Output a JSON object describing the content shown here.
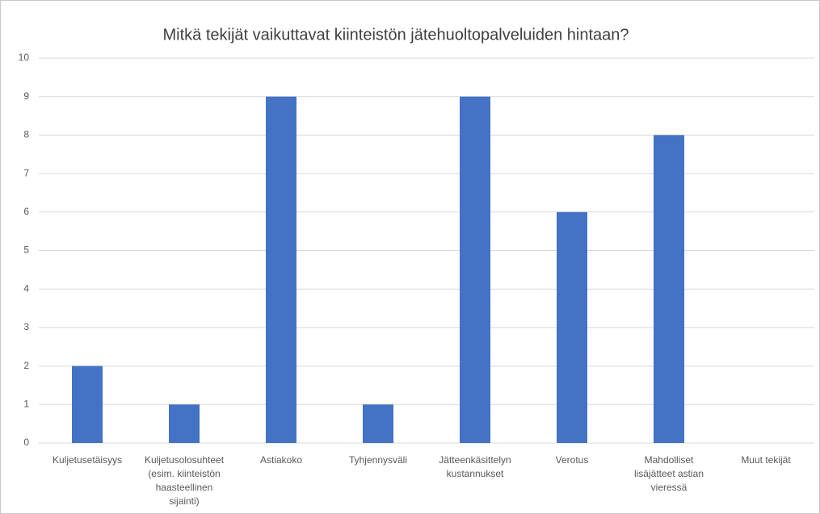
{
  "chart_data": {
    "type": "bar",
    "title": "Mitkä tekijät vaikuttavat kiinteistön jätehuoltopalveluiden hintaan?",
    "categories": [
      "Kuljetusetäisyys",
      "Kuljetusolosuhteet (esim. kiinteistön haasteellinen sijainti)",
      "Astiakoko",
      "Tyhjennysväli",
      "Jätteenkäsittelyn kustannukset",
      "Verotus",
      "Mahdolliset lisäjätteet astian vieressä",
      "Muut tekijät"
    ],
    "values": [
      2,
      1,
      9,
      1,
      9,
      6,
      8,
      0
    ],
    "color": "#4472c4",
    "ylim": [
      0,
      10
    ],
    "yticks": [
      0,
      1,
      2,
      3,
      4,
      5,
      6,
      7,
      8,
      9,
      10
    ],
    "grid": true
  }
}
